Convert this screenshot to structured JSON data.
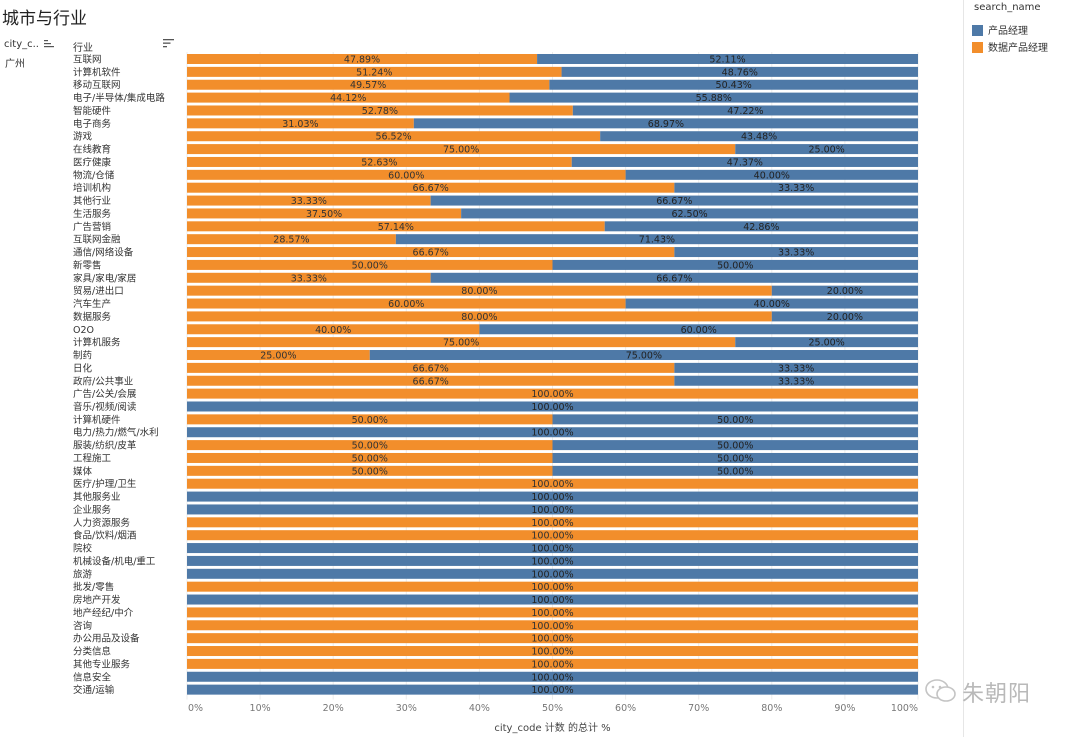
{
  "title": "城市与行业",
  "headers": {
    "city": "city_c..",
    "industry": "行业"
  },
  "city_value": "广州",
  "legend": {
    "title": "search_name",
    "items": [
      {
        "label": "产品经理",
        "color": "#4e79a7"
      },
      {
        "label": "数据产品经理",
        "color": "#f28e2b"
      }
    ]
  },
  "watermark": "朱朝阳",
  "chart_data": {
    "type": "bar",
    "orientation": "horizontal-stacked-100",
    "xlabel": "city_code 计数 的总计 %",
    "x_ticks": [
      "0%",
      "10%",
      "20%",
      "30%",
      "40%",
      "50%",
      "60%",
      "70%",
      "80%",
      "90%",
      "100%"
    ],
    "xlim": [
      0,
      100
    ],
    "grid": true,
    "legend_position": "top-right",
    "categories": [
      "互联网",
      "计算机软件",
      "移动互联网",
      "电子/半导体/集成电路",
      "智能硬件",
      "电子商务",
      "游戏",
      "在线教育",
      "医疗健康",
      "物流/仓储",
      "培训机构",
      "其他行业",
      "生活服务",
      "广告营销",
      "互联网金融",
      "通信/网络设备",
      "新零售",
      "家具/家电/家居",
      "贸易/进出口",
      "汽车生产",
      "数据服务",
      "O2O",
      "计算机服务",
      "制药",
      "日化",
      "政府/公共事业",
      "广告/公关/会展",
      "音乐/视频/阅读",
      "计算机硬件",
      "电力/热力/燃气/水利",
      "服装/纺织/皮革",
      "工程施工",
      "媒体",
      "医疗/护理/卫生",
      "其他服务业",
      "企业服务",
      "人力资源服务",
      "食品/饮料/烟酒",
      "院校",
      "机械设备/机电/重工",
      "旅游",
      "批发/零售",
      "房地产开发",
      "地产经纪/中介",
      "咨询",
      "办公用品及设备",
      "分类信息",
      "其他专业服务",
      "信息安全",
      "交通/运输"
    ],
    "series": [
      {
        "name": "数据产品经理",
        "color": "#f28e2b",
        "values": [
          47.89,
          51.24,
          49.57,
          44.12,
          52.78,
          31.03,
          56.52,
          75.0,
          52.63,
          60.0,
          66.67,
          33.33,
          37.5,
          57.14,
          28.57,
          66.67,
          50.0,
          33.33,
          80.0,
          60.0,
          80.0,
          40.0,
          75.0,
          25.0,
          66.67,
          66.67,
          100.0,
          0,
          50.0,
          0,
          50.0,
          50.0,
          50.0,
          100.0,
          0,
          0,
          100.0,
          100.0,
          0,
          0,
          0,
          100.0,
          0,
          100.0,
          100.0,
          100.0,
          100.0,
          100.0,
          0,
          0
        ],
        "labels": [
          "47.89%",
          "51.24%",
          "49.57%",
          "44.12%",
          "52.78%",
          "31.03%",
          "56.52%",
          "75.00%",
          "52.63%",
          "60.00%",
          "66.67%",
          "33.33%",
          "37.50%",
          "57.14%",
          "28.57%",
          "66.67%",
          "50.00%",
          "33.33%",
          "80.00%",
          "60.00%",
          "80.00%",
          "40.00%",
          "75.00%",
          "25.00%",
          "66.67%",
          "66.67%",
          "100.00%",
          "",
          "50.00%",
          "",
          "50.00%",
          "50.00%",
          "50.00%",
          "100.00%",
          "",
          "",
          "100.00%",
          "100.00%",
          "",
          "",
          "",
          "100.00%",
          "",
          "100.00%",
          "100.00%",
          "100.00%",
          "100.00%",
          "100.00%",
          "",
          ""
        ]
      },
      {
        "name": "产品经理",
        "color": "#4e79a7",
        "values": [
          52.11,
          48.76,
          50.43,
          55.88,
          47.22,
          68.97,
          43.48,
          25.0,
          47.37,
          40.0,
          33.33,
          66.67,
          62.5,
          42.86,
          71.43,
          33.33,
          50.0,
          66.67,
          20.0,
          40.0,
          20.0,
          60.0,
          25.0,
          75.0,
          33.33,
          33.33,
          0,
          100.0,
          50.0,
          100.0,
          50.0,
          50.0,
          50.0,
          0,
          100.0,
          100.0,
          0,
          0,
          100.0,
          100.0,
          100.0,
          0,
          100.0,
          0,
          0,
          0,
          0,
          0,
          100.0,
          100.0
        ],
        "labels": [
          "52.11%",
          "48.76%",
          "50.43%",
          "55.88%",
          "47.22%",
          "68.97%",
          "43.48%",
          "25.00%",
          "47.37%",
          "40.00%",
          "33.33%",
          "66.67%",
          "62.50%",
          "42.86%",
          "71.43%",
          "33.33%",
          "50.00%",
          "66.67%",
          "20.00%",
          "40.00%",
          "20.00%",
          "60.00%",
          "25.00%",
          "75.00%",
          "33.33%",
          "33.33%",
          "",
          "100.00%",
          "50.00%",
          "100.00%",
          "50.00%",
          "50.00%",
          "50.00%",
          "",
          "100.00%",
          "100.00%",
          "",
          "",
          "100.00%",
          "100.00%",
          "100.00%",
          "",
          "100.00%",
          "",
          "",
          "",
          "",
          "",
          "100.00%",
          "100.00%"
        ]
      }
    ]
  }
}
